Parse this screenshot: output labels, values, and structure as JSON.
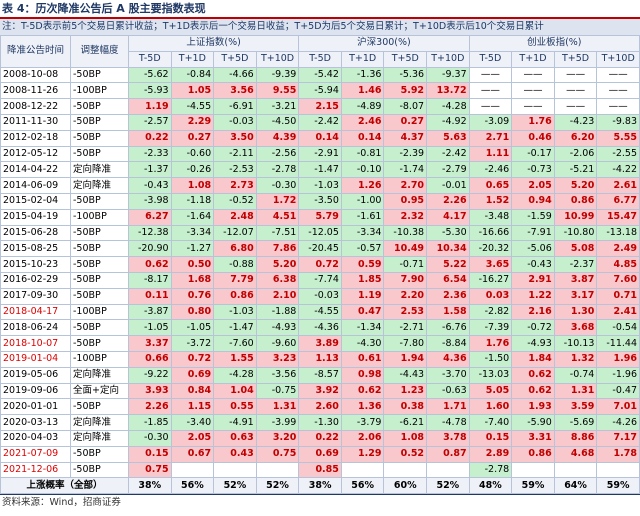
{
  "header": {
    "title": "表 4：历次降准公告后 A 股主要指数表现",
    "note": "注：T-5D表示前5个交易日累计收益；T+1D表示后一个交易日收益；T+5D为后5个交易日累计；T+10D表示后10个交易日累计"
  },
  "table": {
    "groups": [
      "上证指数(%)",
      "沪深300(%)",
      "创业板指(%)"
    ],
    "columns": [
      "降准公告时间",
      "调整幅度",
      "T-5D",
      "T+1D",
      "T+5D",
      "T+10D",
      "T-5D",
      "T+1D",
      "T+5D",
      "T+10D",
      "T-5D",
      "T+1D",
      "T+5D",
      "T+10D"
    ],
    "positive_color": "#f8c8cc",
    "negative_color": "#c6efce",
    "positive_text": "#c00000",
    "rows": [
      {
        "cells": [
          "2008-10-08",
          "-50BP",
          "-5.62",
          "-0.84",
          "-4.66",
          "-9.39",
          "-5.42",
          "-1.36",
          "-5.36",
          "-9.37",
          "——",
          "——",
          "——",
          "——"
        ]
      },
      {
        "cells": [
          "2008-11-26",
          "-100BP",
          "-5.93",
          "1.05",
          "3.56",
          "9.55",
          "-5.94",
          "1.46",
          "5.92",
          "13.72",
          "——",
          "——",
          "——",
          "——"
        ]
      },
      {
        "cells": [
          "2008-12-22",
          "-50BP",
          "1.19",
          "-4.55",
          "-6.91",
          "-3.21",
          "2.15",
          "-4.89",
          "-8.07",
          "-4.28",
          "——",
          "——",
          "——",
          "——"
        ]
      },
      {
        "cells": [
          "2011-11-30",
          "-50BP",
          "-2.57",
          "2.29",
          "-0.03",
          "-4.50",
          "-2.42",
          "2.46",
          "0.27",
          "-4.92",
          "-3.09",
          "1.76",
          "-4.23",
          "-9.83"
        ]
      },
      {
        "cells": [
          "2012-02-18",
          "-50BP",
          "0.22",
          "0.27",
          "3.50",
          "4.39",
          "0.14",
          "0.14",
          "4.37",
          "5.63",
          "2.71",
          "0.46",
          "6.20",
          "5.55"
        ]
      },
      {
        "cells": [
          "2012-05-12",
          "-50BP",
          "-2.33",
          "-0.60",
          "-2.11",
          "-2.56",
          "-2.91",
          "-0.81",
          "-2.39",
          "-2.42",
          "1.11",
          "-0.17",
          "-2.06",
          "-2.55"
        ]
      },
      {
        "cells": [
          "2014-04-22",
          "定向降准",
          "-1.37",
          "-0.26",
          "-2.53",
          "-2.78",
          "-1.47",
          "-0.10",
          "-1.74",
          "-2.79",
          "-2.46",
          "-0.73",
          "-5.21",
          "-4.22"
        ]
      },
      {
        "cells": [
          "2014-06-09",
          "定向降准",
          "-0.43",
          "1.08",
          "2.73",
          "-0.30",
          "-1.03",
          "1.26",
          "2.70",
          "-0.01",
          "0.65",
          "2.05",
          "5.20",
          "2.61"
        ]
      },
      {
        "cells": [
          "2015-02-04",
          "-50BP",
          "-3.98",
          "-1.18",
          "-0.52",
          "1.72",
          "-3.50",
          "-1.00",
          "0.95",
          "2.26",
          "1.52",
          "0.94",
          "0.86",
          "6.77"
        ]
      },
      {
        "cells": [
          "2015-04-19",
          "-100BP",
          "6.27",
          "-1.64",
          "2.48",
          "4.51",
          "5.79",
          "-1.61",
          "2.32",
          "4.17",
          "-3.48",
          "-1.59",
          "10.99",
          "15.47"
        ]
      },
      {
        "cells": [
          "2015-06-28",
          "-50BP",
          "-12.38",
          "-3.34",
          "-12.07",
          "-7.51",
          "-12.05",
          "-3.34",
          "-10.38",
          "-5.30",
          "-16.66",
          "-7.91",
          "-10.80",
          "-13.18"
        ]
      },
      {
        "cells": [
          "2015-08-25",
          "-50BP",
          "-20.90",
          "-1.27",
          "6.80",
          "7.86",
          "-20.45",
          "-0.57",
          "10.49",
          "10.34",
          "-20.32",
          "-5.06",
          "5.08",
          "2.49"
        ]
      },
      {
        "cells": [
          "2015-10-23",
          "-50BP",
          "0.62",
          "0.50",
          "-0.88",
          "5.20",
          "0.72",
          "0.59",
          "-0.71",
          "5.22",
          "3.65",
          "-0.43",
          "-2.37",
          "4.85"
        ]
      },
      {
        "cells": [
          "2016-02-29",
          "-50BP",
          "-8.17",
          "1.68",
          "7.79",
          "6.38",
          "-7.74",
          "1.85",
          "7.90",
          "6.54",
          "-16.27",
          "2.91",
          "3.87",
          "7.60"
        ]
      },
      {
        "cells": [
          "2017-09-30",
          "-50BP",
          "0.11",
          "0.76",
          "0.86",
          "2.10",
          "-0.03",
          "1.19",
          "2.20",
          "2.36",
          "0.03",
          "1.22",
          "3.17",
          "0.71"
        ]
      },
      {
        "cells": [
          "2018-04-17",
          "-100BP",
          "-3.87",
          "0.80",
          "-1.03",
          "-1.88",
          "-4.55",
          "0.47",
          "2.53",
          "1.58",
          "-2.82",
          "2.16",
          "1.30",
          "2.41"
        ],
        "date_color": "#e00000"
      },
      {
        "cells": [
          "2018-06-24",
          "-50BP",
          "-1.05",
          "-1.05",
          "-1.47",
          "-4.93",
          "-4.36",
          "-1.34",
          "-2.71",
          "-6.76",
          "-7.39",
          "-0.72",
          "3.68",
          "-0.54"
        ]
      },
      {
        "cells": [
          "2018-10-07",
          "-50BP",
          "3.37",
          "-3.72",
          "-7.60",
          "-9.60",
          "3.89",
          "-4.30",
          "-7.80",
          "-8.84",
          "1.76",
          "-4.93",
          "-10.13",
          "-11.44"
        ],
        "date_color": "#e00000"
      },
      {
        "cells": [
          "2019-01-04",
          "-100BP",
          "0.66",
          "0.72",
          "1.55",
          "3.23",
          "1.13",
          "0.61",
          "1.94",
          "4.36",
          "-1.50",
          "1.84",
          "1.32",
          "1.96"
        ],
        "date_color": "#e00000"
      },
      {
        "cells": [
          "2019-05-06",
          "定向降准",
          "-9.22",
          "0.69",
          "-4.28",
          "-3.56",
          "-8.57",
          "0.98",
          "-4.43",
          "-3.70",
          "-13.03",
          "0.62",
          "-0.74",
          "-1.96"
        ]
      },
      {
        "cells": [
          "2019-09-06",
          "全面+定向",
          "3.93",
          "0.84",
          "1.04",
          "-0.75",
          "3.92",
          "0.62",
          "1.23",
          "-0.63",
          "5.05",
          "0.62",
          "1.31",
          "-0.47"
        ]
      },
      {
        "cells": [
          "2020-01-01",
          "-50BP",
          "2.26",
          "1.15",
          "0.55",
          "1.31",
          "2.60",
          "1.36",
          "0.38",
          "1.71",
          "1.60",
          "1.93",
          "3.59",
          "7.01"
        ]
      },
      {
        "cells": [
          "2020-03-13",
          "定向降准",
          "-1.85",
          "-3.40",
          "-4.91",
          "-3.99",
          "-1.30",
          "-3.79",
          "-6.21",
          "-4.78",
          "-7.40",
          "-5.90",
          "-5.69",
          "-4.26"
        ]
      },
      {
        "cells": [
          "2020-04-03",
          "定向降准",
          "-0.30",
          "2.05",
          "0.63",
          "3.20",
          "0.22",
          "2.06",
          "1.08",
          "3.78",
          "0.15",
          "3.31",
          "8.86",
          "7.17"
        ]
      },
      {
        "cells": [
          "2021-07-09",
          "-50BP",
          "0.15",
          "0.67",
          "0.43",
          "0.75",
          "0.69",
          "1.29",
          "0.52",
          "0.87",
          "2.89",
          "0.86",
          "4.68",
          "1.78"
        ],
        "date_color": "#e00000"
      },
      {
        "cells": [
          "2021-12-06",
          "-50BP",
          "0.75",
          null,
          null,
          null,
          "0.85",
          null,
          null,
          null,
          "-2.78",
          null,
          null,
          null
        ],
        "date_color": "#e00000"
      }
    ],
    "footer": [
      "上涨概率（全部）",
      "38%",
      "56%",
      "52%",
      "52%",
      "38%",
      "56%",
      "60%",
      "52%",
      "48%",
      "59%",
      "64%",
      "59%"
    ]
  },
  "source": "资料来源：Wind，招商证券"
}
